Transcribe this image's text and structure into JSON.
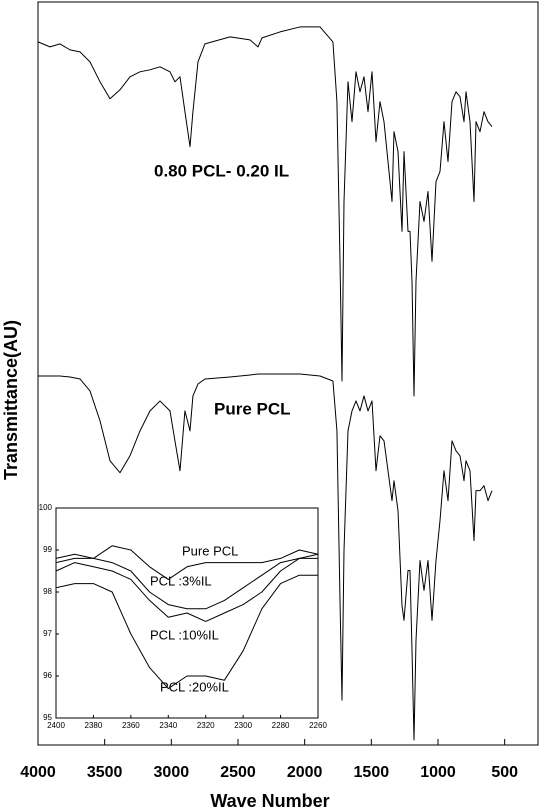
{
  "chart_data": [
    {
      "type": "line",
      "x_label": "Wave Number",
      "y_label": "Transmittance(AU)",
      "xlim": [
        4000,
        250
      ],
      "xticks": [
        4000,
        3500,
        3000,
        2500,
        2000,
        1500,
        1000,
        500
      ],
      "ylim": [
        0,
        745
      ],
      "x": [
        4000,
        3910,
        3835,
        3760,
        3685,
        3610,
        3535,
        3460,
        3385,
        3310,
        3235,
        3160,
        3085,
        3010,
        2973,
        2935,
        2898,
        2860,
        2838,
        2800,
        2748,
        2560,
        2410,
        2350,
        2320,
        2185,
        2035,
        1885,
        1788,
        1758,
        1735,
        1720,
        1705,
        1675,
        1645,
        1615,
        1585,
        1555,
        1525,
        1495,
        1465,
        1435,
        1405,
        1375,
        1345,
        1330,
        1300,
        1270,
        1255,
        1225,
        1210,
        1195,
        1180,
        1165,
        1135,
        1105,
        1075,
        1045,
        1015,
        985,
        955,
        925,
        895,
        865,
        835,
        805,
        790,
        760,
        730,
        715,
        685,
        655,
        625,
        595
      ],
      "series": [
        {
          "name": "0.80 PCL- 0.20 IL",
          "color": "#000000",
          "values": [
            705,
            700,
            703,
            697,
            695,
            685,
            665,
            648,
            657,
            670,
            675,
            677,
            680,
            675,
            665,
            670,
            635,
            600,
            635,
            685,
            703,
            710,
            707,
            700,
            709,
            715,
            720,
            720,
            705,
            645,
            485,
            365,
            545,
            665,
            625,
            675,
            655,
            670,
            635,
            675,
            605,
            645,
            625,
            585,
            545,
            615,
            595,
            515,
            595,
            515,
            515,
            465,
            350,
            465,
            545,
            525,
            555,
            485,
            565,
            575,
            625,
            585,
            645,
            655,
            650,
            625,
            655,
            625,
            545,
            625,
            615,
            635,
            625,
            620
          ]
        },
        {
          "name": "Pure PCL",
          "color": "#000000",
          "values": [
            370,
            370,
            370,
            369,
            367,
            355,
            325,
            285,
            273,
            290,
            315,
            335,
            345,
            335,
            305,
            275,
            335,
            315,
            350,
            362,
            367,
            369,
            371,
            372,
            372,
            372,
            372,
            370,
            365,
            315,
            145,
            45,
            195,
            315,
            335,
            345,
            335,
            350,
            335,
            345,
            275,
            310,
            305,
            275,
            245,
            265,
            235,
            140,
            125,
            175,
            175,
            95,
            5,
            105,
            185,
            155,
            185,
            125,
            185,
            225,
            275,
            245,
            305,
            295,
            290,
            265,
            285,
            275,
            205,
            255,
            255,
            260,
            245,
            255
          ]
        }
      ]
    },
    {
      "type": "line",
      "xlim": [
        2400,
        2260
      ],
      "xticks": [
        2400,
        2380,
        2360,
        2340,
        2320,
        2300,
        2280,
        2260
      ],
      "ylim": [
        95,
        100
      ],
      "yticks": [
        95,
        96,
        97,
        98,
        99,
        100
      ],
      "x": [
        2400,
        2390,
        2380,
        2370,
        2360,
        2350,
        2340,
        2330,
        2320,
        2310,
        2300,
        2290,
        2280,
        2270,
        2260
      ],
      "series": [
        {
          "name": "Pure PCL",
          "color": "#000000",
          "values": [
            98.8,
            98.9,
            98.8,
            99.1,
            99.0,
            98.6,
            98.3,
            98.6,
            98.7,
            98.7,
            98.7,
            98.7,
            98.8,
            99.0,
            98.9
          ]
        },
        {
          "name": "PCL :3%IL",
          "color": "#000000",
          "values": [
            98.7,
            98.8,
            98.8,
            98.7,
            98.5,
            98.0,
            97.7,
            97.6,
            97.6,
            97.8,
            98.1,
            98.4,
            98.7,
            98.8,
            98.9
          ]
        },
        {
          "name": "PCL :10%IL",
          "color": "#000000",
          "values": [
            98.5,
            98.7,
            98.6,
            98.5,
            98.3,
            97.8,
            97.4,
            97.5,
            97.3,
            97.5,
            97.7,
            98.0,
            98.5,
            98.8,
            98.8
          ]
        },
        {
          "name": "PCL :20%IL",
          "color": "#000000",
          "values": [
            98.1,
            98.2,
            98.2,
            98.0,
            97.0,
            96.2,
            95.7,
            96.0,
            96.0,
            95.9,
            96.6,
            97.6,
            98.2,
            98.4,
            98.4
          ]
        }
      ]
    }
  ]
}
